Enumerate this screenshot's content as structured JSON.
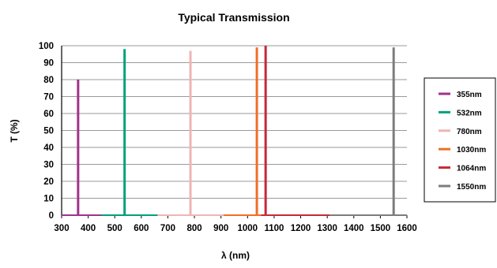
{
  "chart_data": {
    "type": "line",
    "title": "Typical Transmission",
    "xlabel": "λ (nm)",
    "ylabel": "T (%)",
    "xlim": [
      300,
      1600
    ],
    "ylim": [
      0,
      100
    ],
    "xticks": [
      300,
      400,
      500,
      600,
      700,
      800,
      900,
      1000,
      1100,
      1200,
      1300,
      1400,
      1500,
      1600
    ],
    "yticks": [
      0,
      10,
      20,
      30,
      40,
      50,
      60,
      70,
      80,
      90,
      100
    ],
    "grid": true,
    "legend_position": "right",
    "series": [
      {
        "name": "355nm",
        "color": "#a0328c",
        "center": 362,
        "peak": 80
      },
      {
        "name": "532nm",
        "color": "#00a07d",
        "center": 537,
        "peak": 98
      },
      {
        "name": "780nm",
        "color": "#f0b4b4",
        "center": 785,
        "peak": 97
      },
      {
        "name": "1030nm",
        "color": "#f06e28",
        "center": 1035,
        "peak": 99
      },
      {
        "name": "1064nm",
        "color": "#c82837",
        "center": 1068,
        "peak": 100
      },
      {
        "name": "1550nm",
        "color": "#7d7d7d",
        "center": 1550,
        "peak": 99
      }
    ]
  }
}
